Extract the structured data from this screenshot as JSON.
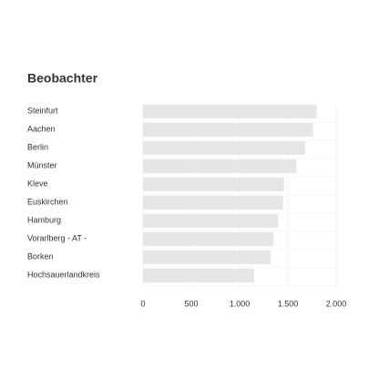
{
  "chart_data": {
    "type": "bar",
    "orientation": "horizontal",
    "title": "Beobachter",
    "categories": [
      "Steinfurt",
      "Aachen",
      "Berlin",
      "Münster",
      "Kleve",
      "Euskirchen",
      "Hamburg",
      "Vorarlberg - AT -",
      "Borken",
      "Hochsauerlandkreis"
    ],
    "values": [
      1800,
      1760,
      1680,
      1590,
      1460,
      1450,
      1400,
      1350,
      1320,
      1150
    ],
    "color": "#e6e6e6",
    "xlim": [
      0,
      2000
    ],
    "xticks": [
      0,
      500,
      {
        "value": 1000,
        "label": "1.000"
      },
      {
        "value": 1500,
        "label": "1.500"
      },
      {
        "value": 2000,
        "label": "2.000"
      }
    ],
    "grid": true
  }
}
